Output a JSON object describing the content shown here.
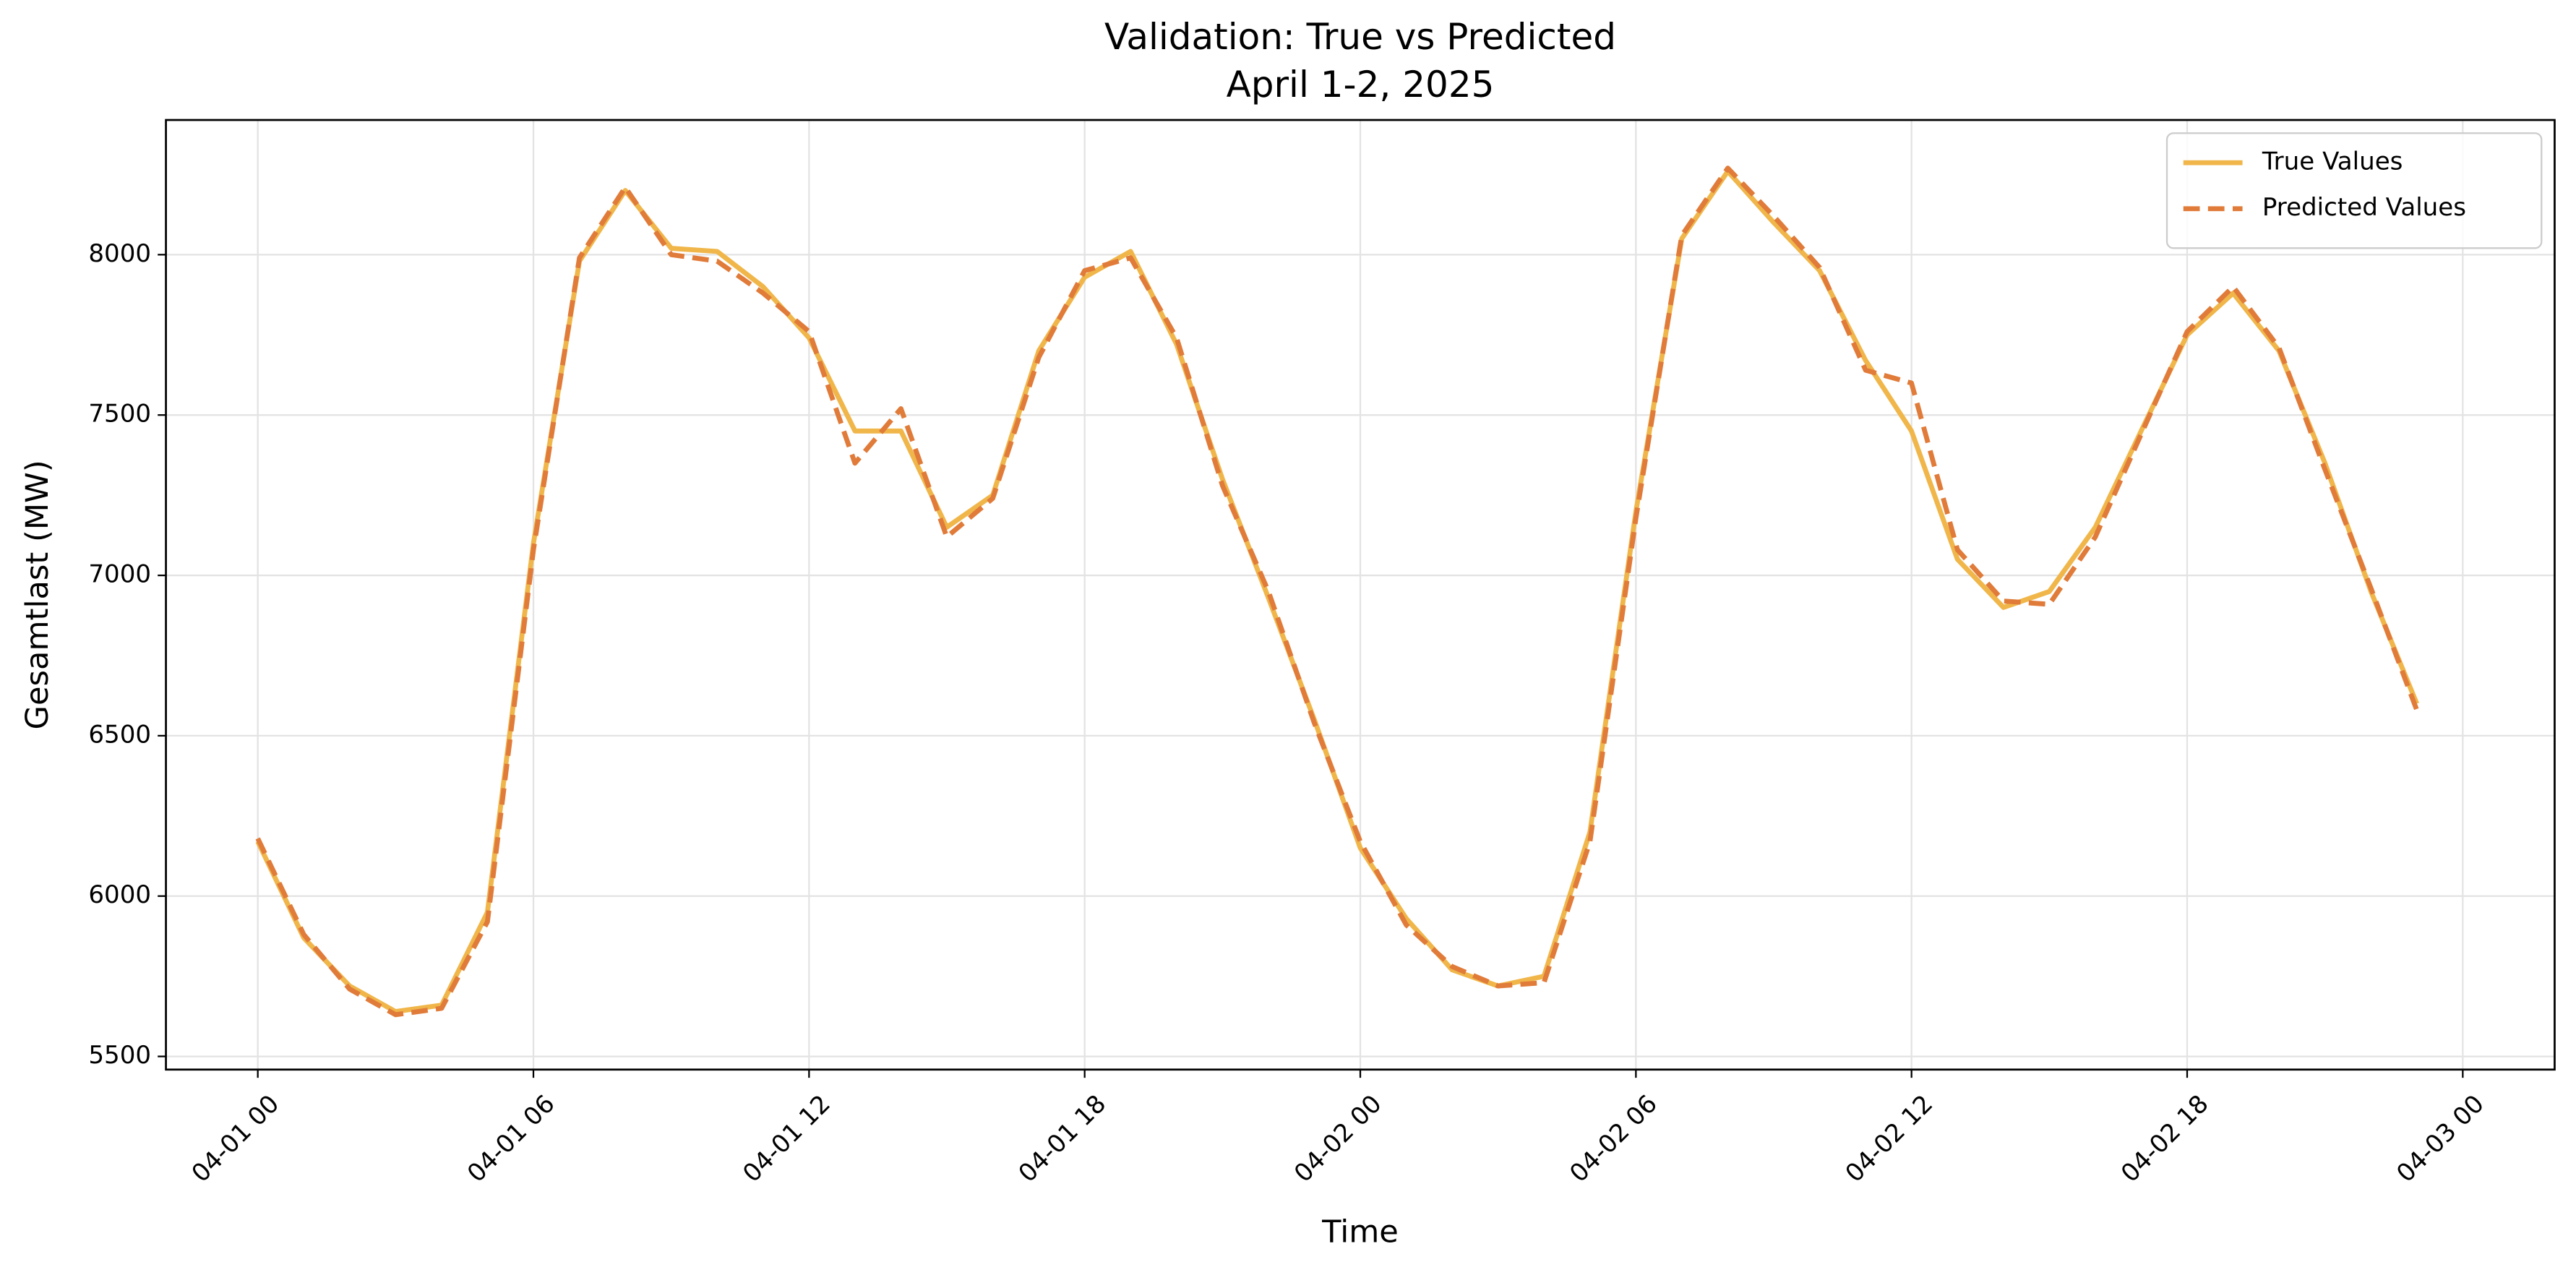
{
  "chart_data": {
    "type": "line",
    "title": "Validation: True vs Predicted",
    "subtitle": "April 1-2, 2025",
    "x_label": "Time",
    "y_label": "Gesamtlast (MW)",
    "x": [
      "04-01 00",
      "04-01 01",
      "04-01 02",
      "04-01 03",
      "04-01 04",
      "04-01 05",
      "04-01 06",
      "04-01 07",
      "04-01 08",
      "04-01 09",
      "04-01 10",
      "04-01 11",
      "04-01 12",
      "04-01 13",
      "04-01 14",
      "04-01 15",
      "04-01 16",
      "04-01 17",
      "04-01 18",
      "04-01 19",
      "04-01 20",
      "04-01 21",
      "04-01 22",
      "04-01 23",
      "04-02 00",
      "04-02 01",
      "04-02 02",
      "04-02 03",
      "04-02 04",
      "04-02 05",
      "04-02 06",
      "04-02 07",
      "04-02 08",
      "04-02 09",
      "04-02 10",
      "04-02 11",
      "04-02 12",
      "04-02 13",
      "04-02 14",
      "04-02 15",
      "04-02 16",
      "04-02 17",
      "04-02 18",
      "04-02 19",
      "04-02 20",
      "04-02 21",
      "04-02 22",
      "04-02 23"
    ],
    "series": [
      {
        "name": "True Values",
        "color": "#f0b64a",
        "dash": false,
        "values": [
          6170,
          5870,
          5720,
          5640,
          5660,
          5950,
          7100,
          7980,
          8200,
          8020,
          8010,
          7900,
          7740,
          7450,
          7450,
          7150,
          7250,
          7700,
          7930,
          8010,
          7720,
          7300,
          6930,
          6550,
          6150,
          5930,
          5770,
          5720,
          5750,
          6200,
          7200,
          8050,
          8260,
          8100,
          7950,
          7670,
          7450,
          7050,
          6900,
          6950,
          7150,
          7450,
          7750,
          7880,
          7700,
          7350,
          6950,
          6600
        ]
      },
      {
        "name": "Predicted Values",
        "color": "#e07b39",
        "dash": true,
        "values": [
          6180,
          5880,
          5710,
          5630,
          5650,
          5920,
          7080,
          7990,
          8210,
          8000,
          7980,
          7880,
          7760,
          7350,
          7520,
          7120,
          7240,
          7680,
          7950,
          7990,
          7740,
          7280,
          6950,
          6540,
          6170,
          5910,
          5780,
          5720,
          5730,
          6170,
          7180,
          8060,
          8270,
          8120,
          7960,
          7640,
          7600,
          7080,
          6920,
          6910,
          7120,
          7440,
          7760,
          7900,
          7710,
          7330,
          6960,
          6580
        ]
      }
    ],
    "xlim": [
      "03-31 22",
      "04-03 02"
    ],
    "xticks": [
      "04-01 00",
      "04-01 06",
      "04-01 12",
      "04-01 18",
      "04-02 00",
      "04-02 06",
      "04-02 12",
      "04-02 18",
      "04-03 00"
    ],
    "ylim": [
      5459,
      8420
    ],
    "yticks": [
      5500,
      6000,
      6500,
      7000,
      7500,
      8000
    ],
    "grid": true,
    "legend": "upper right"
  }
}
